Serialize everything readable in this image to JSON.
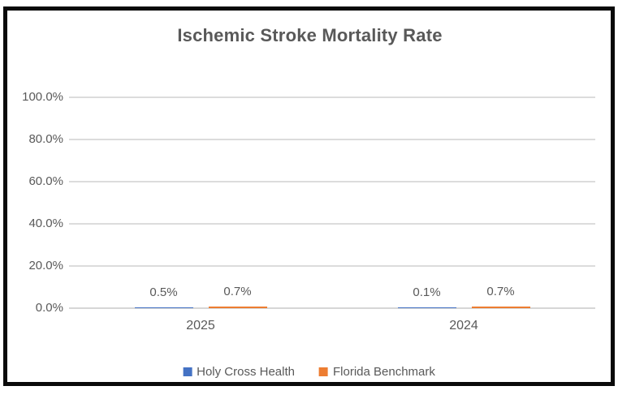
{
  "chart_data": {
    "type": "bar",
    "title": "Ischemic Stroke Mortality Rate",
    "categories": [
      "2025",
      "2024"
    ],
    "series": [
      {
        "name": "Holy Cross Health",
        "color": "#4472C4",
        "values": [
          0.5,
          0.1
        ],
        "data_labels": [
          "0.5%",
          "0.1%"
        ]
      },
      {
        "name": "Florida Benchmark",
        "color": "#ED7D31",
        "values": [
          0.7,
          0.7
        ],
        "data_labels": [
          "0.7%",
          "0.7%"
        ]
      }
    ],
    "y_axis": {
      "tick_labels": [
        "100.0%",
        "80.0%",
        "60.0%",
        "40.0%",
        "20.0%",
        "0.0%"
      ],
      "min": 0,
      "max": 100,
      "unit": "%"
    },
    "grid": true,
    "legend_position": "bottom",
    "colors": {
      "title_text": "#595959",
      "axis_text": "#595959",
      "gridline": "#dcdcdc",
      "frame_border": "#0a0a0a",
      "background": "#ffffff"
    }
  }
}
